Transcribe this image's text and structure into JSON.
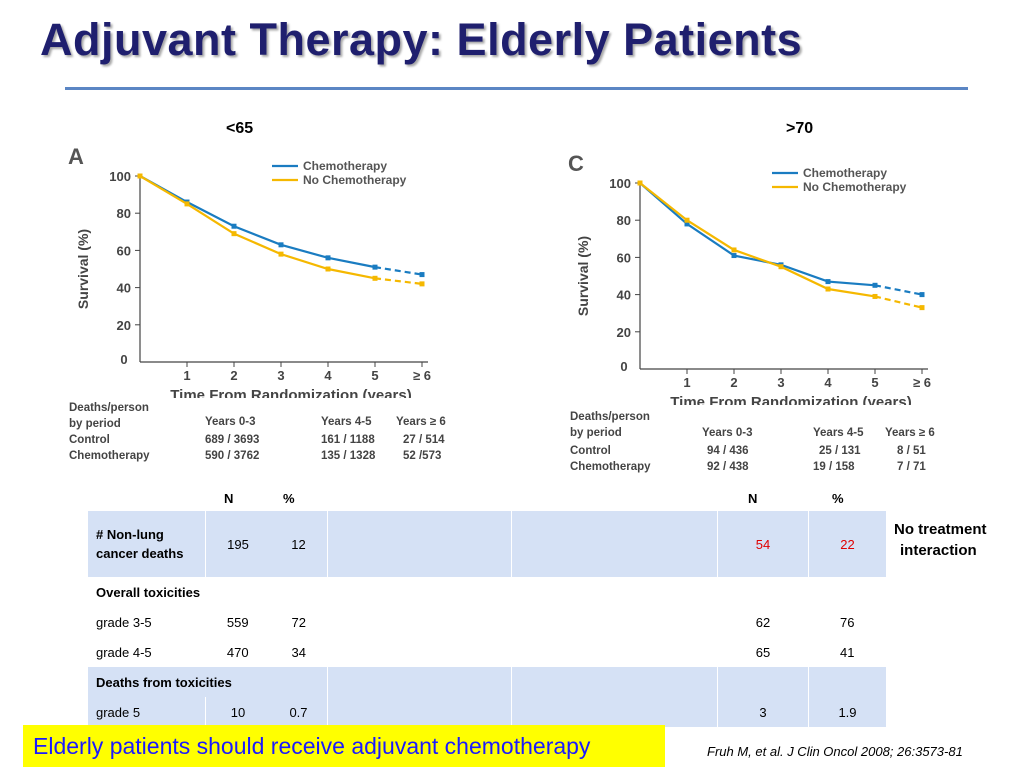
{
  "slide": {
    "title": "Adjuvant Therapy: Elderly Patients",
    "conclusion": "Elderly patients should receive adjuvant chemotherapy",
    "citation": "Fruh M, et al. J Clin Oncol 2008; 26:3573-81",
    "note_line1": "No treatment",
    "note_line2": "interaction"
  },
  "colors": {
    "chemo": "#1a7cc1",
    "nochemo": "#f5b800",
    "title": "#1f1f6e",
    "table_shade": "#d5e1f5",
    "highlight": "#e00000",
    "banner": "#ffff00",
    "banner_text": "#1a1aff"
  },
  "chart_data": [
    {
      "type": "line",
      "group_label": "<65",
      "panel_letter": "A",
      "xlabel": "Time From Randomization (years)",
      "ylabel": "Survival (%)",
      "x_ticks": [
        "0",
        "1",
        "2",
        "3",
        "4",
        "5",
        "≥ 6"
      ],
      "y_ticks": [
        "20",
        "40",
        "60",
        "80",
        "100"
      ],
      "ylim": [
        0,
        100
      ],
      "xlim": [
        0,
        6
      ],
      "legend_position": "top-right",
      "x": [
        0,
        1,
        2,
        3,
        4,
        5,
        6
      ],
      "series": [
        {
          "name": "Chemotherapy",
          "values": [
            100,
            86,
            73,
            63,
            56,
            51,
            47
          ]
        },
        {
          "name": "No Chemotherapy",
          "values": [
            100,
            85,
            69,
            58,
            50,
            45,
            42
          ]
        }
      ],
      "deaths_table": {
        "label_line1": "Deaths/person",
        "label_line2": "by period",
        "headers": [
          "Years 0-3",
          "Years 4-5",
          "Years ≥ 6"
        ],
        "rows": [
          {
            "label": "Control",
            "values": [
              "689 / 3693",
              "161 / 1188",
              "27 / 514"
            ]
          },
          {
            "label": "Chemotherapy",
            "values": [
              "590 / 3762",
              "135 / 1328",
              "52  /573"
            ]
          }
        ]
      }
    },
    {
      "type": "line",
      "group_label": ">70",
      "panel_letter": "C",
      "xlabel": "Time From Randomization (years)",
      "ylabel": "Survival (%)",
      "x_ticks": [
        "0",
        "1",
        "2",
        "3",
        "4",
        "5",
        "≥ 6"
      ],
      "y_ticks": [
        "20",
        "40",
        "60",
        "80",
        "100"
      ],
      "ylim": [
        0,
        100
      ],
      "xlim": [
        0,
        6
      ],
      "legend_position": "top-right",
      "x": [
        0,
        1,
        2,
        3,
        4,
        5,
        6
      ],
      "series": [
        {
          "name": "Chemotherapy",
          "values": [
            100,
            78,
            61,
            56,
            47,
            45,
            40
          ]
        },
        {
          "name": "No Chemotherapy",
          "values": [
            100,
            80,
            64,
            55,
            43,
            39,
            33
          ]
        }
      ],
      "deaths_table": {
        "label_line1": "Deaths/person",
        "label_line2": "by period",
        "headers": [
          "Years 0-3",
          "Years 4-5",
          "Years ≥ 6"
        ],
        "rows": [
          {
            "label": "Control",
            "values": [
              "94 / 436",
              "25 / 131",
              "8 / 51"
            ]
          },
          {
            "label": "Chemotherapy",
            "values": [
              "92 / 438",
              "19 / 158",
              "7 / 71"
            ]
          }
        ]
      }
    }
  ],
  "tox_table": {
    "col_n": "N",
    "col_pct": "%",
    "rows": [
      {
        "label": "# Non-lung cancer deaths",
        "n1": "195",
        "p1": "12",
        "n2": "54",
        "p2": "22"
      },
      {
        "label": "Overall toxicities",
        "n1": "",
        "p1": "",
        "n2": "",
        "p2": ""
      },
      {
        "label": "grade 3-5",
        "n1": "559",
        "p1": "72",
        "n2": "62",
        "p2": "76"
      },
      {
        "label": "grade 4-5",
        "n1": "470",
        "p1": "34",
        "n2": "65",
        "p2": "41"
      },
      {
        "label": "Deaths from toxicities",
        "n1": "",
        "p1": "",
        "n2": "",
        "p2": ""
      },
      {
        "label": "grade 5",
        "n1": "10",
        "p1": "0.7",
        "n2": "3",
        "p2": "1.9"
      }
    ]
  }
}
